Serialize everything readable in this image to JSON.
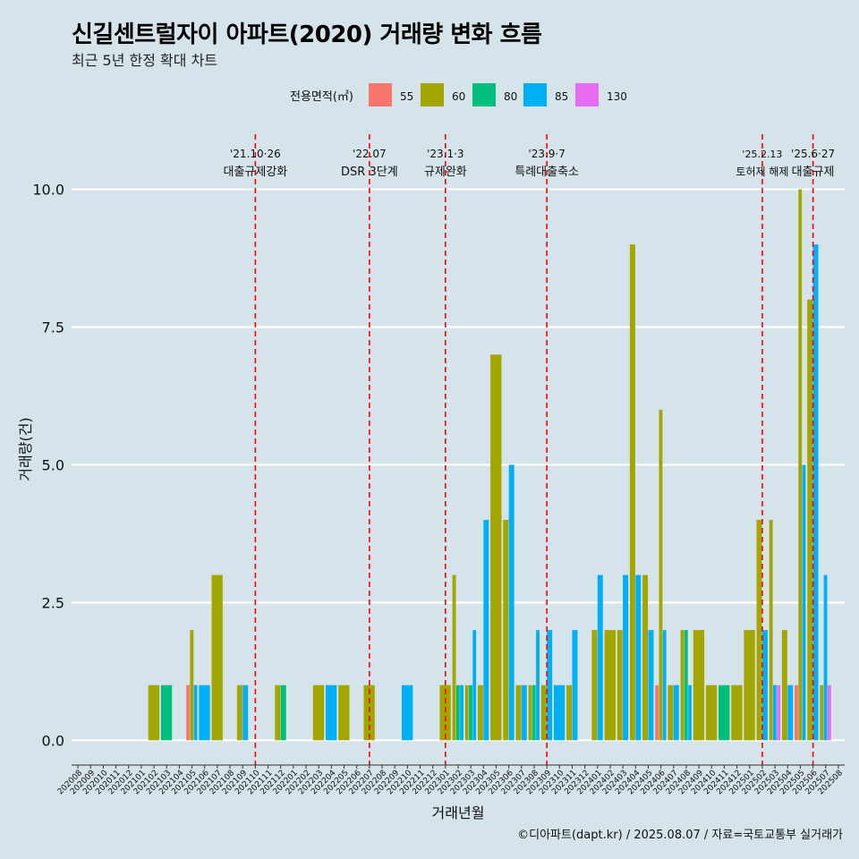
{
  "header": {
    "title": "신길센트럴자이 아파트(2020) 거래량 변화 흐름",
    "subtitle": "최근 5년 한정 확대 차트"
  },
  "caption": "©디아파트(dapt.kr) / 2025.08.07 / 자료=국토교통부 실거래가",
  "colors": {
    "background": "#d5e3ea",
    "gridline": "#ffffff",
    "event_line": "#ff0000"
  },
  "chart_data": {
    "type": "bar",
    "xlabel": "거래년월",
    "ylabel": "거래량(건)",
    "ylim": [
      -0.45,
      11
    ],
    "yticks": [
      0.0,
      2.5,
      5.0,
      7.5,
      10.0
    ],
    "ytick_labels": [
      "0.0",
      "2.5",
      "5.0",
      "7.5",
      "10.0"
    ],
    "legend": {
      "title": "전용면적(㎡)",
      "position": "top",
      "items": [
        {
          "label": "55",
          "color": "#f8766d"
        },
        {
          "label": "60",
          "color": "#a3a500"
        },
        {
          "label": "80",
          "color": "#00bf7d"
        },
        {
          "label": "85",
          "color": "#00b0f6"
        },
        {
          "label": "130",
          "color": "#e76bf3"
        }
      ]
    },
    "categories": [
      "202008",
      "202009",
      "202010",
      "202011",
      "202012",
      "202101",
      "202102",
      "202103",
      "202104",
      "202105",
      "202106",
      "202107",
      "202108",
      "202109",
      "202110",
      "202111",
      "202112",
      "202201",
      "202202",
      "202203",
      "202204",
      "202205",
      "202206",
      "202207",
      "202208",
      "202209",
      "202210",
      "202211",
      "202212",
      "202301",
      "202302",
      "202303",
      "202304",
      "202305",
      "202306",
      "202307",
      "202308",
      "202309",
      "202310",
      "202311",
      "202312",
      "202401",
      "202402",
      "202403",
      "202404",
      "202405",
      "202406",
      "202407",
      "202408",
      "202409",
      "202410",
      "202411",
      "202412",
      "202501",
      "202502",
      "202503",
      "202504",
      "202505",
      "202506",
      "202507",
      "202508"
    ],
    "bars": [
      {
        "month": "202102",
        "area": "60",
        "value": 1
      },
      {
        "month": "202103",
        "area": "80",
        "value": 1
      },
      {
        "month": "202105",
        "area": "55",
        "value": 1
      },
      {
        "month": "202105",
        "area": "60",
        "value": 2
      },
      {
        "month": "202105",
        "area": "85",
        "value": 1
      },
      {
        "month": "202106",
        "area": "85",
        "value": 1
      },
      {
        "month": "202107",
        "area": "60",
        "value": 3
      },
      {
        "month": "202109",
        "area": "60",
        "value": 1
      },
      {
        "month": "202109",
        "area": "85",
        "value": 1
      },
      {
        "month": "202112",
        "area": "60",
        "value": 1
      },
      {
        "month": "202112",
        "area": "80",
        "value": 1
      },
      {
        "month": "202203",
        "area": "60",
        "value": 1
      },
      {
        "month": "202204",
        "area": "85",
        "value": 1
      },
      {
        "month": "202205",
        "area": "60",
        "value": 1
      },
      {
        "month": "202207",
        "area": "60",
        "value": 1
      },
      {
        "month": "202210",
        "area": "85",
        "value": 1
      },
      {
        "month": "202301",
        "area": "60",
        "value": 1
      },
      {
        "month": "202302",
        "area": "60",
        "value": 3
      },
      {
        "month": "202302",
        "area": "80",
        "value": 1
      },
      {
        "month": "202302",
        "area": "85",
        "value": 1
      },
      {
        "month": "202303",
        "area": "60",
        "value": 1
      },
      {
        "month": "202303",
        "area": "80",
        "value": 1
      },
      {
        "month": "202303",
        "area": "85",
        "value": 2
      },
      {
        "month": "202304",
        "area": "60",
        "value": 1
      },
      {
        "month": "202304",
        "area": "85",
        "value": 4
      },
      {
        "month": "202305",
        "area": "60",
        "value": 7
      },
      {
        "month": "202306",
        "area": "60",
        "value": 4
      },
      {
        "month": "202306",
        "area": "85",
        "value": 5
      },
      {
        "month": "202307",
        "area": "60",
        "value": 1
      },
      {
        "month": "202307",
        "area": "85",
        "value": 1
      },
      {
        "month": "202308",
        "area": "60",
        "value": 1
      },
      {
        "month": "202308",
        "area": "80",
        "value": 1
      },
      {
        "month": "202308",
        "area": "85",
        "value": 2
      },
      {
        "month": "202309",
        "area": "60",
        "value": 1
      },
      {
        "month": "202309",
        "area": "85",
        "value": 2
      },
      {
        "month": "202310",
        "area": "85",
        "value": 1
      },
      {
        "month": "202311",
        "area": "60",
        "value": 1
      },
      {
        "month": "202311",
        "area": "85",
        "value": 2
      },
      {
        "month": "202401",
        "area": "60",
        "value": 2
      },
      {
        "month": "202401",
        "area": "85",
        "value": 3
      },
      {
        "month": "202402",
        "area": "60",
        "value": 2
      },
      {
        "month": "202403",
        "area": "60",
        "value": 2
      },
      {
        "month": "202403",
        "area": "85",
        "value": 3
      },
      {
        "month": "202404",
        "area": "60",
        "value": 9
      },
      {
        "month": "202404",
        "area": "85",
        "value": 3
      },
      {
        "month": "202405",
        "area": "60",
        "value": 3
      },
      {
        "month": "202405",
        "area": "85",
        "value": 2
      },
      {
        "month": "202406",
        "area": "55",
        "value": 1
      },
      {
        "month": "202406",
        "area": "60",
        "value": 6
      },
      {
        "month": "202406",
        "area": "85",
        "value": 2
      },
      {
        "month": "202407",
        "area": "60",
        "value": 1
      },
      {
        "month": "202407",
        "area": "85",
        "value": 1
      },
      {
        "month": "202408",
        "area": "60",
        "value": 2
      },
      {
        "month": "202408",
        "area": "80",
        "value": 2
      },
      {
        "month": "202408",
        "area": "85",
        "value": 1
      },
      {
        "month": "202409",
        "area": "60",
        "value": 2
      },
      {
        "month": "202410",
        "area": "60",
        "value": 1
      },
      {
        "month": "202411",
        "area": "80",
        "value": 1
      },
      {
        "month": "202412",
        "area": "60",
        "value": 1
      },
      {
        "month": "202501",
        "area": "60",
        "value": 2
      },
      {
        "month": "202502",
        "area": "60",
        "value": 4
      },
      {
        "month": "202502",
        "area": "85",
        "value": 2
      },
      {
        "month": "202503",
        "area": "130",
        "value": 1
      },
      {
        "month": "202503",
        "area": "60",
        "value": 4
      },
      {
        "month": "202503",
        "area": "85",
        "value": 1
      },
      {
        "month": "202504",
        "area": "60",
        "value": 2
      },
      {
        "month": "202504",
        "area": "85",
        "value": 1
      },
      {
        "month": "202505",
        "area": "55",
        "value": 1
      },
      {
        "month": "202505",
        "area": "60",
        "value": 10
      },
      {
        "month": "202505",
        "area": "85",
        "value": 5
      },
      {
        "month": "202506",
        "area": "60",
        "value": 8
      },
      {
        "month": "202506",
        "area": "85",
        "value": 9
      },
      {
        "month": "202507",
        "area": "60",
        "value": 1
      },
      {
        "month": "202507",
        "area": "85",
        "value": 3
      },
      {
        "month": "202507",
        "area": "130",
        "value": 1
      }
    ],
    "events": [
      {
        "month": "202110",
        "date": "'21.10·26",
        "label": "대출규제강화"
      },
      {
        "month": "202207",
        "date": "'22.07",
        "label": "DSR 3단계"
      },
      {
        "month": "202301",
        "date": "'23.1·3",
        "label": "규제완화"
      },
      {
        "month": "202309",
        "date": "'23.9·7",
        "label": "특례대출축소"
      },
      {
        "month": "202502",
        "date": "'25.2.13",
        "label": "토허제 해제"
      },
      {
        "month": "202506",
        "date": "'25.6·27",
        "label": "대출규제"
      }
    ]
  }
}
